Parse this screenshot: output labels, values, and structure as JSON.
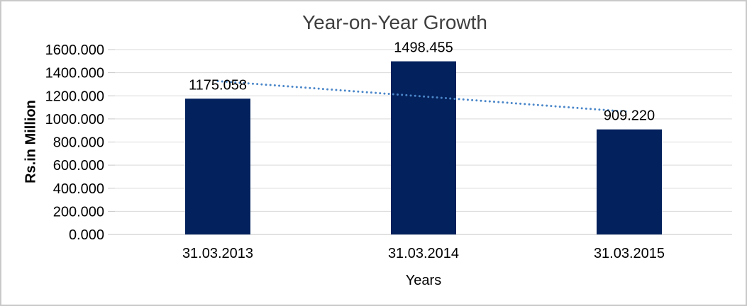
{
  "chart_data": {
    "type": "bar",
    "title": "Year-on-Year Growth",
    "xlabel": "Years",
    "ylabel": "Rs.in Million",
    "categories": [
      "31.03.2013",
      "31.03.2014",
      "31.03.2015"
    ],
    "values": [
      1175.058,
      1498.455,
      909.22
    ],
    "data_labels": [
      "1175.058",
      "1498.455",
      "909.220"
    ],
    "ylim": [
      0,
      1600
    ],
    "ytick_step": 200,
    "y_tick_labels": [
      "1600.000",
      "1400.000",
      "1200.000",
      "1000.000",
      "800.000",
      "600.000",
      "400.000",
      "200.000",
      "0.000"
    ],
    "grid": true,
    "legend": null,
    "trendline": {
      "type": "linear",
      "style": "dotted",
      "values": [
        1327.163,
        1194.244,
        1061.325
      ]
    },
    "colors": {
      "bar": "#03215c",
      "trendline": "#4a86c9",
      "gridline": "#d9d9d9",
      "axis": "#c6c6c6",
      "title_text": "#3f3f3f",
      "label_text": "#000000",
      "frame": "#c9c9c9"
    }
  }
}
